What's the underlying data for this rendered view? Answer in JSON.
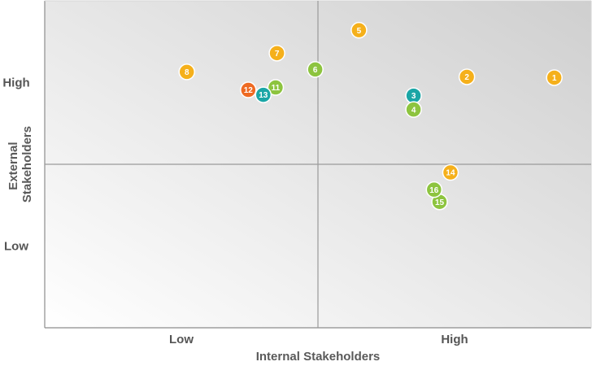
{
  "chart_data": {
    "type": "scatter",
    "title": "",
    "xlabel": "Internal Stakeholders",
    "ylabel_lines": [
      "External",
      "Stakeholders"
    ],
    "x_ticks": [
      {
        "label": "Low",
        "value": 1
      },
      {
        "label": "High",
        "value": 3
      }
    ],
    "y_ticks": [
      {
        "label": "High",
        "value": 3
      },
      {
        "label": "Low",
        "value": 1
      }
    ],
    "xlim": [
      0,
      4
    ],
    "ylim": [
      0,
      4
    ],
    "quadrant_dividers": {
      "x": 2,
      "y": 2
    },
    "grid": false,
    "legend": "none",
    "colors": {
      "yellow": "#f5b01b",
      "green": "#8dc43f",
      "teal": "#1aa6a6",
      "orange": "#ee6a22",
      "axis": "#8c8c8c",
      "divider": "#9a9a9a"
    },
    "points": [
      {
        "id": "1",
        "x": 3.73,
        "y": 3.06,
        "color": "yellow"
      },
      {
        "id": "2",
        "x": 3.09,
        "y": 3.07,
        "color": "yellow"
      },
      {
        "id": "3",
        "x": 2.7,
        "y": 2.84,
        "color": "teal"
      },
      {
        "id": "4",
        "x": 2.7,
        "y": 2.67,
        "color": "green"
      },
      {
        "id": "5",
        "x": 2.3,
        "y": 3.64,
        "color": "yellow"
      },
      {
        "id": "6",
        "x": 1.98,
        "y": 3.16,
        "color": "green"
      },
      {
        "id": "7",
        "x": 1.7,
        "y": 3.36,
        "color": "yellow"
      },
      {
        "id": "8",
        "x": 1.04,
        "y": 3.13,
        "color": "yellow"
      },
      {
        "id": "11",
        "x": 1.69,
        "y": 2.94,
        "color": "green"
      },
      {
        "id": "12",
        "x": 1.49,
        "y": 2.91,
        "color": "orange"
      },
      {
        "id": "13",
        "x": 1.6,
        "y": 2.85,
        "color": "teal"
      },
      {
        "id": "14",
        "x": 2.97,
        "y": 1.9,
        "color": "yellow"
      },
      {
        "id": "15",
        "x": 2.89,
        "y": 1.54,
        "color": "green"
      },
      {
        "id": "16",
        "x": 2.85,
        "y": 1.69,
        "color": "green"
      }
    ]
  }
}
